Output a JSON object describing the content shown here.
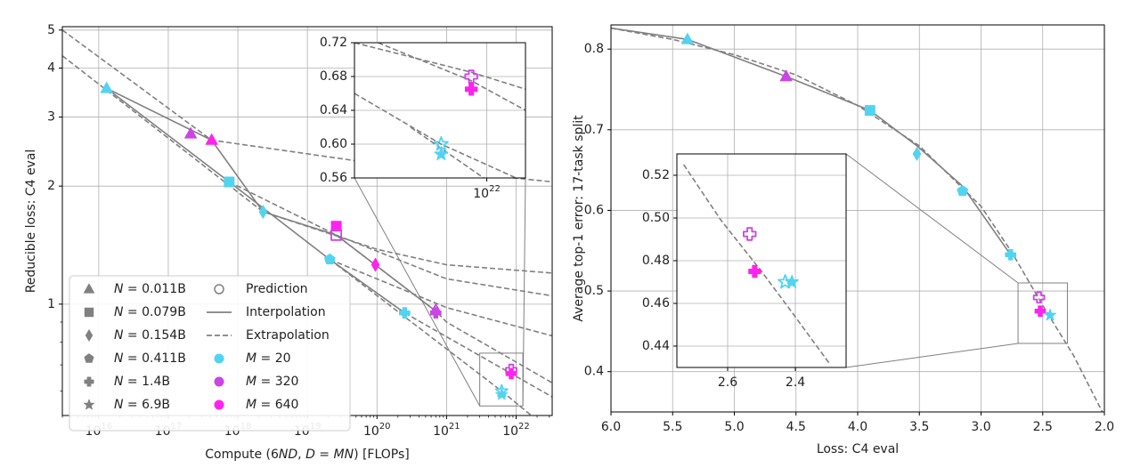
{
  "chart_data": [
    {
      "type": "scatter",
      "xlabel": "Compute (6ND, D = MN) [FLOPs]",
      "ylabel": "Reducible loss: C4 eval",
      "xscale": "log",
      "yscale": "log",
      "xlim": [
        3000000000000000.0,
        3.3e+22
      ],
      "ylim": [
        0.52,
        5.1
      ],
      "xticks": [
        {
          "v": 1e+16,
          "t": "10"
        },
        {
          "v": 1e+17,
          "t": "10"
        },
        {
          "v": 1e+18,
          "t": "10"
        },
        {
          "v": 1e+19,
          "t": "10"
        },
        {
          "v": 1e+20,
          "t": "10"
        },
        {
          "v": 1e+21,
          "t": "10"
        },
        {
          "v": 1e+22,
          "t": "10"
        }
      ],
      "xtick_exponents": [
        "16",
        "17",
        "18",
        "19",
        "20",
        "21",
        "22"
      ],
      "yticks": [
        {
          "v": 1,
          "t": "1"
        },
        {
          "v": 2,
          "t": "2"
        },
        {
          "v": 3,
          "t": "3"
        },
        {
          "v": 4,
          "t": "4"
        },
        {
          "v": 5,
          "t": "5"
        }
      ],
      "grid": true,
      "legend_position": "bottom-left",
      "legend_rows": [
        [
          {
            "kind": "triangle",
            "text": "N = 0.011B"
          },
          {
            "kind": "prediction",
            "text": "Prediction"
          }
        ],
        [
          {
            "kind": "square",
            "text": "N = 0.079B"
          },
          {
            "kind": "solid-line",
            "text": "Interpolation"
          }
        ],
        [
          {
            "kind": "diamond",
            "text": "N = 0.154B"
          },
          {
            "kind": "dashed-line",
            "text": "Extrapolation"
          }
        ],
        [
          {
            "kind": "pentagon",
            "text": "N = 0.411B"
          },
          {
            "kind": "dot",
            "color": "#52d4f0",
            "text": "M = 20"
          }
        ],
        [
          {
            "kind": "plus",
            "text": "N = 1.4B"
          },
          {
            "kind": "dot",
            "color": "#cc44e6",
            "text": "M = 320"
          }
        ],
        [
          {
            "kind": "star",
            "text": "N = 6.9B"
          },
          {
            "kind": "dot",
            "color": "#ff22ee",
            "text": "M = 640"
          }
        ]
      ],
      "points": [
        {
          "x": 1.3e+16,
          "y": 3.55,
          "shape": "triangle",
          "color": "#52d4f0",
          "hollow": false
        },
        {
          "x": 2.1e+17,
          "y": 2.72,
          "shape": "triangle",
          "color": "#cc44e6",
          "hollow": false
        },
        {
          "x": 4.2e+17,
          "y": 2.62,
          "shape": "triangle",
          "color": "#ff22ee",
          "hollow": false
        },
        {
          "x": 7.5e+17,
          "y": 2.05,
          "shape": "square",
          "color": "#52d4f0",
          "hollow": false
        },
        {
          "x": 2.3e+18,
          "y": 1.72,
          "shape": "diamond",
          "color": "#52d4f0",
          "hollow": false
        },
        {
          "x": 2.6e+19,
          "y": 1.58,
          "shape": "square",
          "color": "#ff22ee",
          "hollow": false
        },
        {
          "x": 2.6e+19,
          "y": 1.5,
          "shape": "square",
          "color": "#cc44e6",
          "hollow": true
        },
        {
          "x": 2.1e+19,
          "y": 1.3,
          "shape": "pentagon",
          "color": "#52d4f0",
          "hollow": false
        },
        {
          "x": 9.5e+19,
          "y": 1.26,
          "shape": "diamond",
          "color": "#ff22ee",
          "hollow": false
        },
        {
          "x": 7e+20,
          "y": 0.96,
          "shape": "diamond",
          "color": "#cc44e6",
          "hollow": true
        },
        {
          "x": 2.5e+20,
          "y": 0.95,
          "shape": "plus",
          "color": "#52d4f0",
          "hollow": false
        },
        {
          "x": 7e+20,
          "y": 0.95,
          "shape": "plus",
          "color": "#cc44e6",
          "hollow": false
        },
        {
          "x": 6.2e+21,
          "y": 0.6,
          "shape": "star",
          "color": "#52d4f0",
          "hollow": true
        },
        {
          "x": 6.2e+21,
          "y": 0.588,
          "shape": "star",
          "color": "#52d4f0",
          "hollow": false
        },
        {
          "x": 8.5e+21,
          "y": 0.68,
          "shape": "plus",
          "color": "#cc44e6",
          "hollow": true
        },
        {
          "x": 8.5e+21,
          "y": 0.665,
          "shape": "plus",
          "color": "#ff22ee",
          "hollow": false
        }
      ],
      "solid_lines": [
        [
          [
            1.3e+16,
            3.55
          ],
          [
            7.5e+17,
            2.05
          ],
          [
            2.1e+19,
            1.3
          ],
          [
            2.5e+20,
            0.95
          ]
        ],
        [
          [
            1.3e+16,
            3.55
          ],
          [
            4.2e+17,
            2.62
          ],
          [
            2.3e+18,
            1.72
          ],
          [
            2.6e+19,
            1.5
          ],
          [
            7e+20,
            0.96
          ]
        ]
      ],
      "dashed_lines": [
        [
          [
            3000000000000000.0,
            5.0
          ],
          [
            4.2e+17,
            2.62
          ],
          [
            1e+20,
            2.28
          ],
          [
            3.3e+22,
            2.05
          ]
        ],
        [
          [
            3000000000000000.0,
            4.3
          ],
          [
            2.3e+18,
            1.72
          ],
          [
            1e+20,
            1.38
          ],
          [
            1e+21,
            1.26
          ],
          [
            3.3e+22,
            1.2
          ]
        ],
        [
          [
            7.5e+17,
            2.05
          ],
          [
            2.6e+19,
            1.5
          ],
          [
            1e+21,
            1.16
          ],
          [
            3.3e+22,
            1.05
          ]
        ],
        [
          [
            2.1e+19,
            1.3
          ],
          [
            1e+21,
            0.98
          ],
          [
            3.3e+22,
            0.83
          ]
        ],
        [
          [
            2.6e+19,
            1.5
          ],
          [
            7e+20,
            0.96
          ],
          [
            1e+21,
            0.9
          ],
          [
            3.3e+22,
            0.63
          ]
        ],
        [
          [
            2.5e+20,
            0.95
          ],
          [
            8.5e+21,
            0.665
          ],
          [
            3.3e+22,
            0.58
          ]
        ],
        [
          [
            2.1e+19,
            1.3
          ],
          [
            6.2e+21,
            0.6
          ],
          [
            3.3e+22,
            0.47
          ]
        ]
      ],
      "inset": {
        "xlim": [
          2.5e+21,
          1.5e+22
        ],
        "ylim": [
          0.56,
          0.72
        ],
        "yticks": [
          {
            "v": 0.56,
            "t": "0.56"
          },
          {
            "v": 0.6,
            "t": "0.60"
          },
          {
            "v": 0.64,
            "t": "0.64"
          },
          {
            "v": 0.68,
            "t": "0.68"
          },
          {
            "v": 0.72,
            "t": "0.72"
          }
        ],
        "xticks": [
          {
            "v": 1e+22,
            "t": "10"
          }
        ],
        "xtick_exponents": [
          "22"
        ],
        "source_box": {
          "x": [
            3e+21,
            1.25e+22
          ],
          "y": [
            0.55,
            0.75
          ]
        },
        "dashed_lines": [
          [
            [
              2.5e+21,
              0.72
            ],
            [
              8.5e+21,
              0.685
            ],
            [
              1.5e+22,
              0.665
            ]
          ],
          [
            [
              3.2e+21,
              0.72
            ],
            [
              8.5e+21,
              0.675
            ],
            [
              1.5e+22,
              0.64
            ]
          ],
          [
            [
              2.5e+21,
              0.66
            ],
            [
              6.2e+21,
              0.6
            ],
            [
              1.5e+22,
              0.555
            ]
          ],
          [
            [
              4.5e+21,
              0.62
            ],
            [
              6.2e+21,
              0.595
            ],
            [
              1.1e+22,
              0.55
            ]
          ]
        ]
      }
    },
    {
      "type": "scatter",
      "xlabel": "Loss: C4 eval",
      "ylabel": "Average top-1 error: 17-task split",
      "xlim": [
        6.0,
        2.0
      ],
      "ylim": [
        0.35,
        0.83
      ],
      "xticks": [
        {
          "v": 6.0,
          "t": "6.0"
        },
        {
          "v": 5.5,
          "t": "5.5"
        },
        {
          "v": 5.0,
          "t": "5.0"
        },
        {
          "v": 4.5,
          "t": "4.5"
        },
        {
          "v": 4.0,
          "t": "4.0"
        },
        {
          "v": 3.5,
          "t": "3.5"
        },
        {
          "v": 3.0,
          "t": "3.0"
        },
        {
          "v": 2.5,
          "t": "2.5"
        },
        {
          "v": 2.0,
          "t": "2.0"
        }
      ],
      "yticks": [
        {
          "v": 0.4,
          "t": "0.4"
        },
        {
          "v": 0.5,
          "t": "0.5"
        },
        {
          "v": 0.6,
          "t": "0.6"
        },
        {
          "v": 0.7,
          "t": "0.7"
        },
        {
          "v": 0.8,
          "t": "0.8"
        }
      ],
      "grid": true,
      "points": [
        {
          "x": 5.38,
          "y": 0.812,
          "shape": "triangle",
          "color": "#52d4f0",
          "hollow": false
        },
        {
          "x": 4.58,
          "y": 0.766,
          "shape": "triangle",
          "color": "#cc44e6",
          "hollow": false
        },
        {
          "x": 3.9,
          "y": 0.724,
          "shape": "square",
          "color": "#52d4f0",
          "hollow": false
        },
        {
          "x": 3.52,
          "y": 0.67,
          "shape": "diamond",
          "color": "#52d4f0",
          "hollow": false
        },
        {
          "x": 3.15,
          "y": 0.624,
          "shape": "pentagon",
          "color": "#52d4f0",
          "hollow": false
        },
        {
          "x": 2.76,
          "y": 0.545,
          "shape": "plus",
          "color": "#52d4f0",
          "hollow": false
        },
        {
          "x": 2.53,
          "y": 0.492,
          "shape": "plus",
          "color": "#cc44e6",
          "hollow": true
        },
        {
          "x": 2.52,
          "y": 0.475,
          "shape": "plus",
          "color": "#ff22ee",
          "hollow": false
        },
        {
          "x": 2.44,
          "y": 0.47,
          "shape": "star",
          "color": "#52d4f0",
          "hollow": false
        }
      ],
      "solid_curve": [
        [
          6.0,
          0.826
        ],
        [
          5.38,
          0.812
        ],
        [
          4.58,
          0.766
        ],
        [
          3.9,
          0.724
        ],
        [
          3.52,
          0.68
        ],
        [
          3.15,
          0.63
        ],
        [
          2.76,
          0.545
        ]
      ],
      "dashed_curve": [
        [
          6.0,
          0.826
        ],
        [
          5.5,
          0.812
        ],
        [
          5.0,
          0.793
        ],
        [
          4.5,
          0.768
        ],
        [
          4.0,
          0.73
        ],
        [
          3.5,
          0.68
        ],
        [
          3.0,
          0.605
        ],
        [
          2.75,
          0.548
        ],
        [
          2.5,
          0.482
        ],
        [
          2.25,
          0.42
        ],
        [
          2.0,
          0.345
        ]
      ],
      "inset": {
        "xlim": [
          2.75,
          2.25
        ],
        "ylim": [
          0.43,
          0.53
        ],
        "xticks": [
          {
            "v": 2.6,
            "t": "2.6"
          },
          {
            "v": 2.4,
            "t": "2.4"
          }
        ],
        "yticks": [
          {
            "v": 0.44,
            "t": "0.44"
          },
          {
            "v": 0.46,
            "t": "0.46"
          },
          {
            "v": 0.48,
            "t": "0.48"
          },
          {
            "v": 0.5,
            "t": "0.50"
          },
          {
            "v": 0.52,
            "t": "0.52"
          }
        ],
        "source_box": {
          "x": [
            2.7,
            2.3
          ],
          "y": [
            0.435,
            0.51
          ]
        },
        "dashed_curve": [
          [
            2.73,
            0.525
          ],
          [
            2.62,
            0.499
          ],
          [
            2.5,
            0.475
          ],
          [
            2.42,
            0.458
          ],
          [
            2.3,
            0.432
          ]
        ],
        "points": [
          {
            "x": 2.535,
            "y": 0.4925,
            "shape": "plus",
            "color": "#cc44e6",
            "hollow": true
          },
          {
            "x": 2.52,
            "y": 0.475,
            "shape": "plus",
            "color": "#ff22ee",
            "hollow": false
          },
          {
            "x": 2.43,
            "y": 0.47,
            "shape": "star",
            "color": "#52d4f0",
            "hollow": true
          },
          {
            "x": 2.41,
            "y": 0.47,
            "shape": "star",
            "color": "#52d4f0",
            "hollow": false
          }
        ]
      }
    }
  ]
}
